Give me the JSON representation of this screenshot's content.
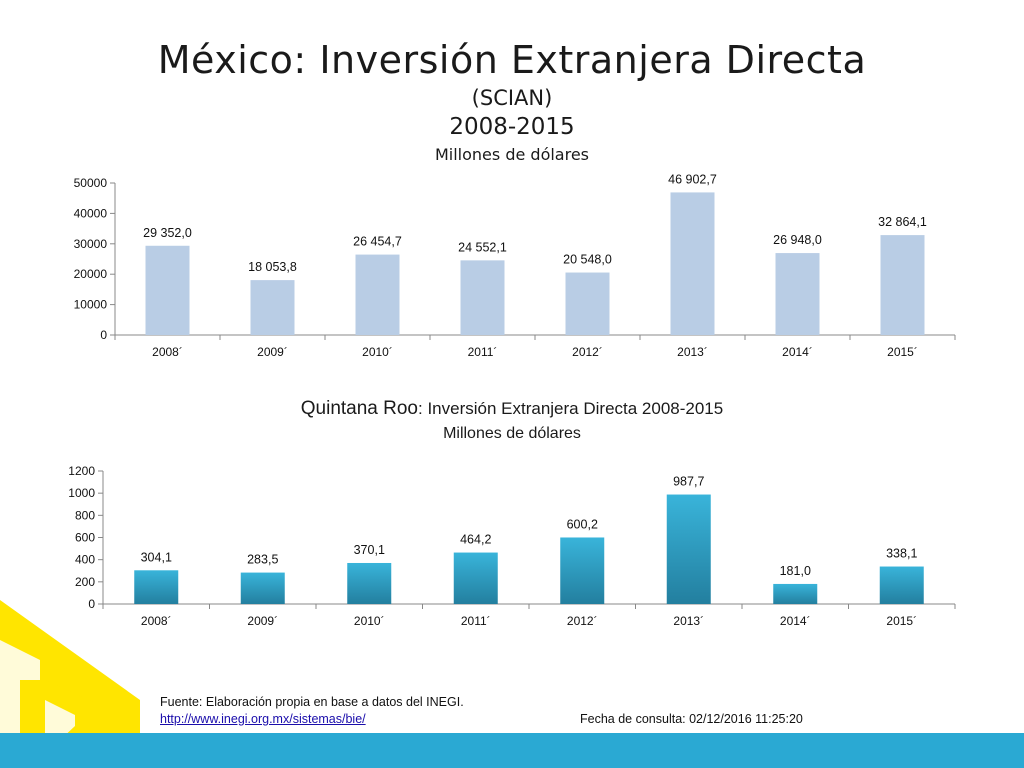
{
  "header": {
    "title": "México: Inversión Extranjera Directa",
    "subtitle1": "(SCIAN)",
    "subtitle2": "2008-2015",
    "units": "Millones de dólares"
  },
  "chart2_header": {
    "title_bold": "Quintana Roo",
    "title_rest": ": Inversión Extranjera Directa 2008-2015",
    "units": "Millones de dólares"
  },
  "footer": {
    "source": "Fuente: Elaboración propia en base a datos del INEGI.",
    "link": "http://www.inegi.org.mx/sistemas/bie/",
    "consult_date": "Fecha de consulta: 02/12/2016 11:25:20"
  },
  "colors": {
    "chart1_bar": "#b9cde5",
    "chart2_bar_top": "#39b4da",
    "chart2_bar_bottom": "#237f9f",
    "footer_bar": "#2aa9d3",
    "logo_yellow": "#ffe500"
  },
  "chart_data": [
    {
      "type": "bar",
      "title": "México: Inversión Extranjera Directa",
      "ylabel": "",
      "xlabel": "",
      "categories": [
        "2008´",
        "2009´",
        "2010´",
        "2011´",
        "2012´",
        "2013´",
        "2014´",
        "2015´"
      ],
      "values": [
        29352.0,
        18053.8,
        26454.7,
        24552.1,
        20548.0,
        46902.7,
        26948.0,
        32864.1
      ],
      "value_labels": [
        "29 352,0",
        "18 053,8",
        "26 454,7",
        "24 552,1",
        "20 548,0",
        "46 902,7",
        "26 948,0",
        "32 864,1"
      ],
      "ylim": [
        0,
        50000
      ],
      "yticks": [
        "0",
        "10000",
        "20000",
        "30000",
        "40000",
        "50000"
      ],
      "grid": false,
      "legend": "none"
    },
    {
      "type": "bar",
      "title": "Quintana Roo: Inversión Extranjera Directa 2008-2015",
      "ylabel": "",
      "xlabel": "",
      "categories": [
        "2008´",
        "2009´",
        "2010´",
        "2011´",
        "2012´",
        "2013´",
        "2014´",
        "2015´"
      ],
      "values": [
        304.1,
        283.5,
        370.1,
        464.2,
        600.2,
        987.7,
        181.0,
        338.1
      ],
      "value_labels": [
        "304,1",
        "283,5",
        "370,1",
        "464,2",
        "600,2",
        "987,7",
        "181,0",
        "338,1"
      ],
      "ylim": [
        0,
        1200
      ],
      "yticks": [
        "0",
        "200",
        "400",
        "600",
        "800",
        "1000",
        "1200"
      ],
      "grid": false,
      "legend": "none"
    }
  ]
}
